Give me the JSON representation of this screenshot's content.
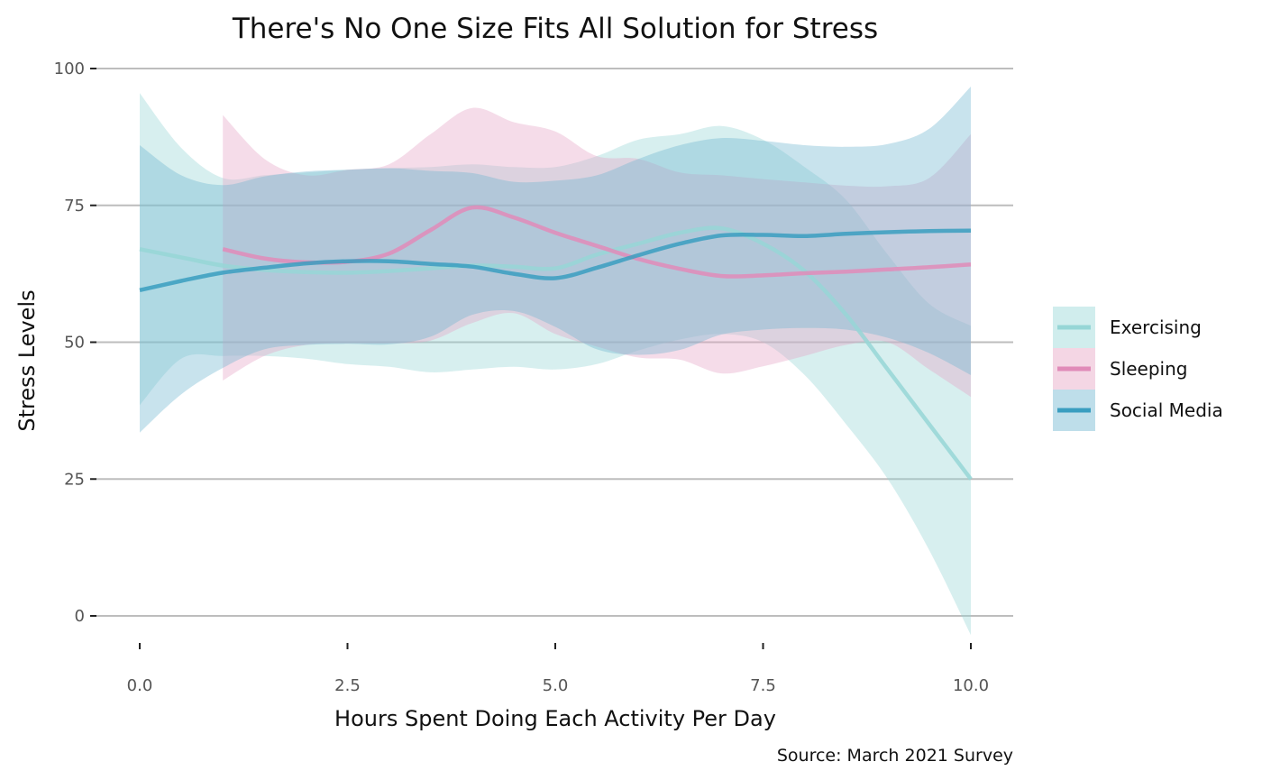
{
  "chart_data": {
    "type": "line",
    "title": "There's No One Size Fits All Solution for Stress",
    "xlabel": "Hours Spent Doing Each Activity Per Day",
    "ylabel": "Stress Levels",
    "caption": "Source: March 2021 Survey",
    "xlim": [
      0,
      10
    ],
    "ylim": [
      0,
      100
    ],
    "x_ticks": [
      "0.0",
      "2.5",
      "5.0",
      "7.5",
      "10.0"
    ],
    "x_tick_values": [
      0,
      2.5,
      5,
      7.5,
      10
    ],
    "y_ticks": [
      "0",
      "25",
      "50",
      "75",
      "100"
    ],
    "y_tick_values": [
      0,
      25,
      50,
      75,
      100
    ],
    "grid": "horizontal",
    "legend_position": "right",
    "series": [
      {
        "name": "Exercising",
        "line_color": "#96d6d6",
        "band_color": "#96d6d6",
        "x": [
          0,
          0.5,
          1,
          1.5,
          2,
          2.5,
          3,
          3.5,
          4,
          4.5,
          5,
          5.5,
          6,
          6.5,
          7,
          7.5,
          8,
          8.5,
          9,
          9.5,
          10
        ],
        "y": [
          67,
          65.5,
          64,
          63.2,
          62.8,
          62.7,
          63,
          63.5,
          64,
          63.8,
          63.5,
          66,
          68,
          70,
          70.8,
          68,
          63,
          55,
          45,
          35,
          25
        ],
        "lower": [
          38.5,
          47,
          47.5,
          47.5,
          47,
          46,
          45.5,
          44.5,
          45,
          45.5,
          45,
          46,
          48.5,
          50.5,
          51.5,
          50,
          44,
          35,
          25,
          12,
          -3.5
        ],
        "upper": [
          95.5,
          85.5,
          80,
          80.5,
          81,
          81.5,
          81.8,
          82,
          82.5,
          82,
          82,
          84,
          87,
          88,
          89.5,
          87,
          82,
          76,
          66,
          57,
          53
        ]
      },
      {
        "name": "Sleeping",
        "line_color": "#e08bb8",
        "band_color": "#e6a4c4",
        "x": [
          1,
          1.5,
          2,
          2.5,
          3,
          3.5,
          4,
          4.5,
          5,
          5.5,
          6,
          6.5,
          7,
          7.5,
          8,
          8.5,
          9,
          9.5,
          10
        ],
        "y": [
          67,
          65.3,
          64.6,
          64.7,
          66.2,
          70.5,
          74.6,
          72.8,
          70,
          67.6,
          65.2,
          63.4,
          62.1,
          62.2,
          62.6,
          62.9,
          63.3,
          63.7,
          64.2
        ],
        "lower": [
          43,
          47.5,
          49.5,
          49.8,
          49.8,
          50.3,
          53.5,
          55.3,
          51.5,
          49.2,
          47.2,
          46.8,
          44.3,
          45.6,
          47.5,
          49.5,
          50,
          45,
          40
        ],
        "upper": [
          91.5,
          83.5,
          80.5,
          81.5,
          82.5,
          88,
          92.8,
          90.2,
          88.5,
          84,
          83.5,
          81,
          80.5,
          79.8,
          79.2,
          78.6,
          78.5,
          80,
          88
        ]
      },
      {
        "name": "Social Media",
        "line_color": "#3a9ec0",
        "band_color": "#6fb5d0",
        "x": [
          0,
          0.5,
          1,
          1.5,
          2,
          2.5,
          3,
          3.5,
          4,
          4.5,
          5,
          5.5,
          6,
          6.5,
          7,
          7.5,
          8,
          8.5,
          9,
          9.5,
          10
        ],
        "y": [
          59.5,
          61.2,
          62.7,
          63.6,
          64.4,
          64.8,
          64.8,
          64.3,
          63.8,
          62.5,
          61.7,
          63.6,
          65.9,
          68,
          69.5,
          69.6,
          69.4,
          69.8,
          70.1,
          70.3,
          70.4
        ],
        "lower": [
          33.5,
          40.5,
          45.3,
          48.7,
          49.5,
          49.7,
          49.6,
          51,
          55,
          55.7,
          52.8,
          48.7,
          47.7,
          48.6,
          51.4,
          52.3,
          52.6,
          52.3,
          50.8,
          48,
          44
        ],
        "upper": [
          86,
          80.5,
          78.7,
          80.3,
          81.2,
          81.5,
          81.8,
          81.3,
          80.9,
          79.3,
          79.5,
          80.5,
          83.5,
          86,
          87.3,
          86.8,
          86,
          85.7,
          86.2,
          89,
          96.7
        ]
      }
    ]
  }
}
